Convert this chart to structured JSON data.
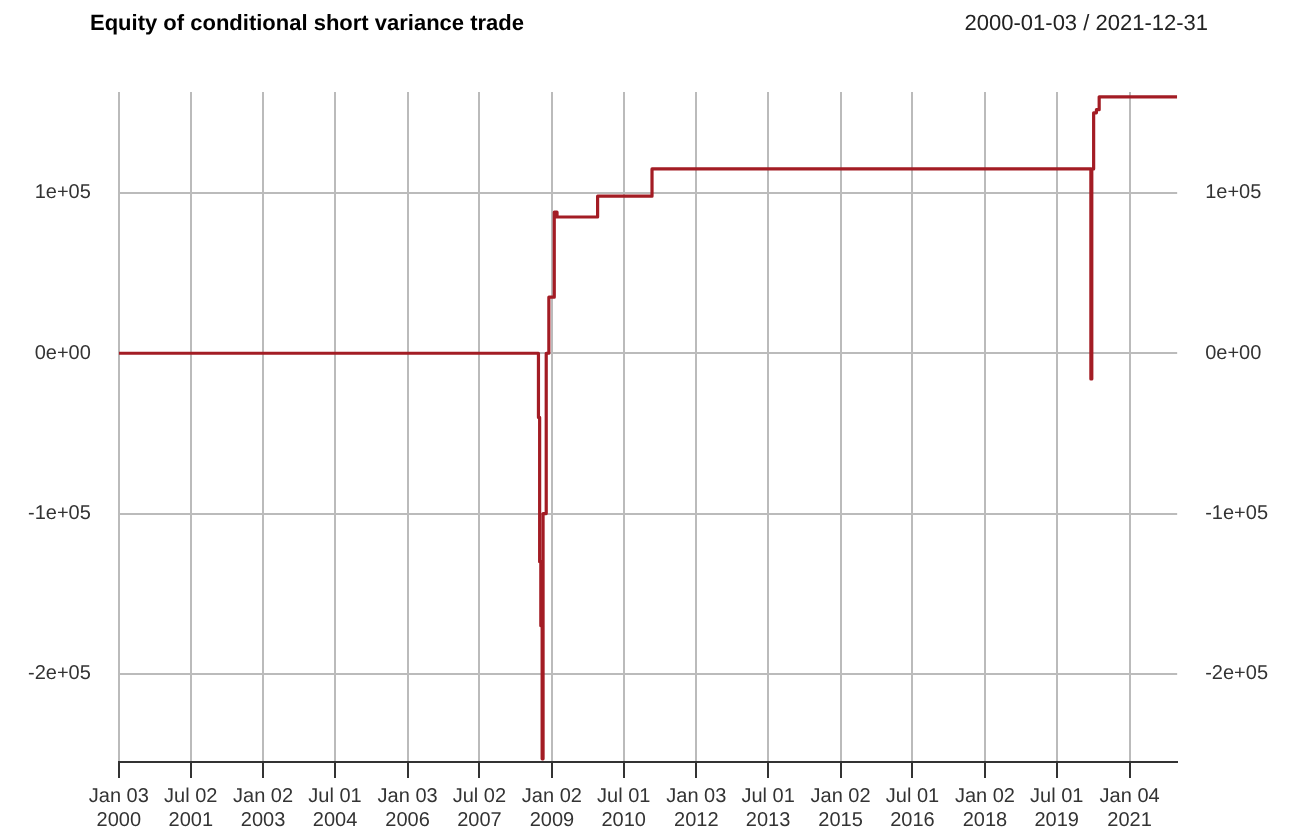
{
  "chart_data": {
    "type": "step",
    "title": "Equity of conditional short variance trade",
    "subtitle": "2000-01-03 / 2021-12-31",
    "x": [
      "2000-01-03",
      "2008-09-15",
      "2008-09-22",
      "2008-10-01",
      "2008-10-10",
      "2008-10-20",
      "2008-10-27",
      "2008-11-20",
      "2008-12-10",
      "2009-01-02",
      "2009-01-20",
      "2009-02-10",
      "2009-12-15",
      "2011-02-01",
      "2020-02-24",
      "2020-03-16",
      "2020-03-23",
      "2020-04-06",
      "2020-04-27",
      "2020-05-18",
      "2021-12-31"
    ],
    "series": [
      {
        "color": "#a31c24",
        "values": [
          0,
          0,
          -40000,
          -130000,
          -170000,
          -253000,
          -100000,
          0,
          35000,
          35000,
          88000,
          85000,
          98000,
          115000,
          115000,
          -16000,
          115000,
          150000,
          152000,
          160000,
          160000
        ]
      }
    ],
    "xlim": [
      "2000-01-03",
      "2021-12-31"
    ],
    "xticks": [
      {
        "value": "2000-01-03",
        "label": "Jan 03 2000"
      },
      {
        "value": "2001-07-02",
        "label": "Jul 02 2001"
      },
      {
        "value": "2003-01-02",
        "label": "Jan 02 2003"
      },
      {
        "value": "2004-07-01",
        "label": "Jul 01 2004"
      },
      {
        "value": "2006-01-03",
        "label": "Jan 03 2006"
      },
      {
        "value": "2007-07-02",
        "label": "Jul 02 2007"
      },
      {
        "value": "2009-01-02",
        "label": "Jan 02 2009"
      },
      {
        "value": "2010-07-01",
        "label": "Jul 01 2010"
      },
      {
        "value": "2012-01-03",
        "label": "Jan 03 2012"
      },
      {
        "value": "2013-07-01",
        "label": "Jul 01 2013"
      },
      {
        "value": "2015-01-02",
        "label": "Jan 02 2015"
      },
      {
        "value": "2016-07-01",
        "label": "Jul 01 2016"
      },
      {
        "value": "2018-01-02",
        "label": "Jan 02 2018"
      },
      {
        "value": "2019-07-01",
        "label": "Jul 01 2019"
      },
      {
        "value": "2021-01-04",
        "label": "Jan 04 2021"
      }
    ],
    "ylim": [
      -255000,
      163000
    ],
    "yticks": [
      {
        "value": -200000,
        "label": "-2e+05"
      },
      {
        "value": -100000,
        "label": "-1e+05"
      },
      {
        "value": 0,
        "label": "0e+00"
      },
      {
        "value": 100000,
        "label": "1e+05"
      }
    ],
    "y2lim": [
      -255000,
      163000
    ],
    "y2ticks": [
      {
        "value": -200000,
        "label": "-2e+05"
      },
      {
        "value": -100000,
        "label": "-1e+05"
      },
      {
        "value": 0,
        "label": "0e+00"
      },
      {
        "value": 100000,
        "label": "1e+05"
      }
    ],
    "grid": true,
    "line_style": "solid",
    "marker": "none",
    "legend": false
  }
}
